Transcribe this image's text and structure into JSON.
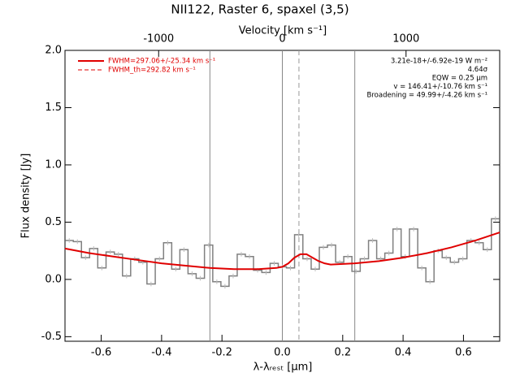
{
  "chart_data": {
    "type": "step",
    "title": "NII122, Raster 6, spaxel (3,5)",
    "xlabel": "λ-λᵣₑₛₜ [μm]",
    "ylabel": "Flux density [Jy]",
    "x2label": "Velocity [km s⁻¹]",
    "xlim": [
      -0.72,
      0.72
    ],
    "ylim": [
      -0.54,
      2.0
    ],
    "x2lim": [
      -1757,
      1757
    ],
    "xticks": [
      -0.6,
      -0.4,
      -0.2,
      {
        "value": 0,
        "label": "0.0"
      },
      0.2,
      0.4,
      0.6
    ],
    "yticks": [
      -0.5,
      {
        "value": 0,
        "label": "0.0"
      },
      0.5,
      {
        "value": 1,
        "label": "1.0"
      },
      1.5,
      {
        "value": 2,
        "label": "2.0"
      }
    ],
    "x2ticks": [
      -1000,
      0,
      1000
    ],
    "x": [
      -0.706,
      -0.679,
      -0.652,
      -0.625,
      -0.598,
      -0.57,
      -0.543,
      -0.516,
      -0.489,
      -0.462,
      -0.435,
      -0.407,
      -0.38,
      -0.353,
      -0.326,
      -0.299,
      -0.272,
      -0.244,
      -0.217,
      -0.19,
      -0.163,
      -0.136,
      -0.109,
      -0.082,
      -0.054,
      -0.027,
      0.0,
      0.027,
      0.054,
      0.082,
      0.109,
      0.136,
      0.163,
      0.19,
      0.217,
      0.244,
      0.272,
      0.299,
      0.326,
      0.353,
      0.38,
      0.407,
      0.435,
      0.462,
      0.489,
      0.516,
      0.543,
      0.57,
      0.598,
      0.625,
      0.652,
      0.679,
      0.706
    ],
    "series": [
      {
        "color": "#808080",
        "error": 0.02,
        "values": [
          0.34,
          0.33,
          0.19,
          0.27,
          0.1,
          0.24,
          0.22,
          0.03,
          0.18,
          0.15,
          -0.04,
          0.18,
          0.32,
          0.09,
          0.26,
          0.05,
          0.01,
          0.3,
          -0.02,
          -0.06,
          0.03,
          0.22,
          0.2,
          0.08,
          0.06,
          0.14,
          0.11,
          0.1,
          0.39,
          0.18,
          0.09,
          0.28,
          0.3,
          0.15,
          0.2,
          0.07,
          0.18,
          0.34,
          0.18,
          0.23,
          0.44,
          0.2,
          0.44,
          0.1,
          -0.02,
          0.25,
          0.19,
          0.15,
          0.18,
          0.34,
          0.32,
          0.26,
          0.53
        ]
      }
    ],
    "fit": {
      "name": "FWHM=297.06+/-25.34 km s⁻¹",
      "color": "#e00000",
      "x": [
        -0.72,
        -0.64,
        -0.56,
        -0.48,
        -0.4,
        -0.32,
        -0.24,
        -0.16,
        -0.08,
        -0.02,
        0.0,
        0.02,
        0.04,
        0.06,
        0.08,
        0.1,
        0.12,
        0.14,
        0.16,
        0.24,
        0.32,
        0.4,
        0.48,
        0.56,
        0.64,
        0.72
      ],
      "values": [
        0.27,
        0.23,
        0.2,
        0.17,
        0.14,
        0.12,
        0.1,
        0.09,
        0.09,
        0.1,
        0.11,
        0.14,
        0.19,
        0.22,
        0.22,
        0.19,
        0.16,
        0.14,
        0.13,
        0.14,
        0.16,
        0.19,
        0.23,
        0.28,
        0.34,
        0.41
      ]
    },
    "fit_th": {
      "name": "FWHM_th=292.82 km s⁻¹",
      "color": "#e00000"
    },
    "vlines": [
      -0.24,
      0,
      0.24
    ],
    "dashed_vline": 0.055,
    "annotations": [
      "3.21e-18+/-6.92e-19 W m⁻²",
      "4.64σ",
      "EQW = 0.25 μm",
      "v = 146.41+/-10.76 km s⁻¹",
      "Broadening = 49.99+/-4.26 km s⁻¹"
    ]
  }
}
